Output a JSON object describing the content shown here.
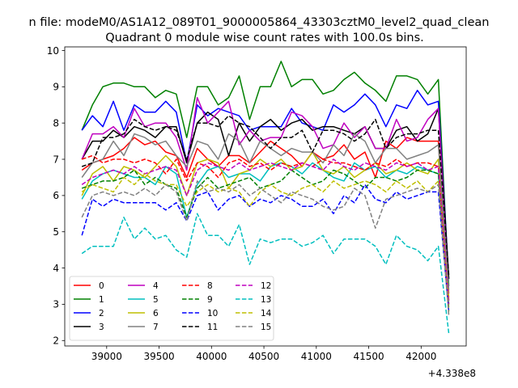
{
  "figure": {
    "suptitle": "n file: modeM0/AS1A12_089T01_9000005864_43303cztM0_level2_quad_clean",
    "title": "Quadrant 0 module wise count rates with 100.0s bins.",
    "offset_label": "+4.338e8"
  },
  "chart_data": {
    "type": "line",
    "title": "Quadrant 0 module wise count rates with 100.0s bins.",
    "xlabel": "",
    "ylabel": "",
    "x_offset_label": "+4.338e8",
    "xlim": [
      38600,
      42430
    ],
    "ylim": [
      1.85,
      10.1
    ],
    "xticks": [
      39000,
      39500,
      40000,
      40500,
      41000,
      41500,
      42000
    ],
    "yticks": [
      2,
      3,
      4,
      5,
      6,
      7,
      8,
      9,
      10
    ],
    "grid": false,
    "legend": {
      "placement": "lower-left",
      "columns": 4
    },
    "x": [
      38764,
      38864,
      38964,
      39064,
      39164,
      39264,
      39364,
      39464,
      39564,
      39664,
      39764,
      39864,
      39964,
      40064,
      40164,
      40264,
      40364,
      40464,
      40564,
      40664,
      40764,
      40864,
      40964,
      41064,
      41164,
      41264,
      41364,
      41464,
      41564,
      41664,
      41764,
      41864,
      41964,
      42064,
      42164,
      42264
    ],
    "series": [
      {
        "name": "0",
        "color": "#ff0000",
        "dash": "solid",
        "values": [
          6.7,
          6.9,
          7.0,
          7.1,
          7.3,
          7.6,
          7.4,
          7.5,
          7.2,
          7.1,
          6.5,
          7.3,
          7.0,
          6.8,
          7.1,
          7.1,
          6.9,
          7.2,
          7.5,
          7.3,
          7.1,
          6.8,
          7.2,
          7.0,
          7.1,
          7.4,
          7.0,
          7.2,
          6.5,
          7.5,
          7.3,
          7.6,
          7.5,
          7.5,
          7.5,
          3.1
        ]
      },
      {
        "name": "1",
        "color": "#008000",
        "dash": "solid",
        "values": [
          7.8,
          8.5,
          9.0,
          9.1,
          9.1,
          9.0,
          9.0,
          8.7,
          8.9,
          8.8,
          7.6,
          9.0,
          9.0,
          8.5,
          8.7,
          9.3,
          8.1,
          9.0,
          9.0,
          9.7,
          9.0,
          9.2,
          9.2,
          8.8,
          8.9,
          9.2,
          9.4,
          9.1,
          8.9,
          8.6,
          9.3,
          9.3,
          9.2,
          8.8,
          9.2,
          3.5
        ]
      },
      {
        "name": "2",
        "color": "#0000ff",
        "dash": "solid",
        "values": [
          7.8,
          8.2,
          7.9,
          8.6,
          7.8,
          8.5,
          8.3,
          8.3,
          8.6,
          8.3,
          6.9,
          8.5,
          8.2,
          8.4,
          8.3,
          8.2,
          7.8,
          7.9,
          7.9,
          7.9,
          8.4,
          8.0,
          7.9,
          7.8,
          8.5,
          8.3,
          8.5,
          8.8,
          8.5,
          7.9,
          8.5,
          8.4,
          8.9,
          8.5,
          8.6,
          3.7
        ]
      },
      {
        "name": "3",
        "color": "#000000",
        "dash": "solid",
        "values": [
          7.0,
          7.5,
          7.5,
          7.8,
          7.6,
          7.9,
          7.8,
          7.6,
          7.9,
          7.9,
          6.9,
          8.0,
          8.3,
          8.1,
          7.1,
          8.0,
          7.5,
          7.9,
          8.1,
          7.8,
          8.0,
          8.1,
          7.8,
          7.9,
          7.9,
          7.8,
          7.7,
          7.9,
          7.3,
          7.3,
          7.8,
          7.9,
          7.5,
          7.7,
          8.4,
          3.7
        ]
      },
      {
        "name": "4",
        "color": "#bf00bf",
        "dash": "solid",
        "values": [
          7.0,
          7.7,
          7.7,
          7.9,
          7.6,
          8.4,
          7.9,
          8.0,
          8.0,
          7.6,
          6.7,
          8.7,
          8.0,
          8.3,
          8.6,
          7.4,
          7.8,
          7.5,
          7.6,
          7.6,
          8.3,
          8.2,
          7.9,
          7.3,
          7.4,
          8.0,
          7.6,
          7.9,
          7.3,
          7.3,
          8.1,
          7.5,
          7.6,
          8.1,
          8.4,
          3.3
        ]
      },
      {
        "name": "5",
        "color": "#00bfbf",
        "dash": "solid",
        "values": [
          5.9,
          6.4,
          6.6,
          6.7,
          6.6,
          6.5,
          6.5,
          6.3,
          6.8,
          6.6,
          5.4,
          6.3,
          6.7,
          6.8,
          6.5,
          6.6,
          6.6,
          6.4,
          6.8,
          6.9,
          6.8,
          6.6,
          6.9,
          6.7,
          6.5,
          6.4,
          6.9,
          6.7,
          6.8,
          6.5,
          6.7,
          6.6,
          6.8,
          6.7,
          6.6,
          3.0
        ]
      },
      {
        "name": "6",
        "color": "#bfbf00",
        "dash": "solid",
        "values": [
          6.0,
          6.6,
          6.8,
          6.4,
          6.8,
          6.7,
          6.5,
          6.8,
          7.1,
          6.8,
          6.0,
          6.9,
          7.0,
          6.9,
          6.2,
          6.6,
          6.7,
          7.0,
          6.8,
          7.0,
          6.7,
          6.8,
          7.2,
          6.7,
          6.6,
          6.8,
          6.5,
          6.7,
          6.9,
          6.6,
          6.7,
          6.9,
          6.7,
          6.6,
          7.0,
          3.2
        ]
      },
      {
        "name": "7",
        "color": "#808080",
        "dash": "solid",
        "values": [
          6.5,
          6.9,
          7.0,
          7.5,
          7.1,
          7.7,
          7.6,
          7.4,
          7.5,
          7.1,
          6.8,
          7.5,
          7.4,
          7.0,
          7.7,
          7.5,
          6.9,
          7.5,
          7.3,
          7.1,
          7.3,
          7.2,
          7.2,
          6.9,
          7.4,
          7.1,
          7.7,
          7.5,
          6.9,
          7.3,
          7.3,
          7.0,
          7.1,
          7.2,
          7.4,
          3.4
        ]
      },
      {
        "name": "8",
        "color": "#ff0000",
        "dash": "dashed",
        "values": [
          7.0,
          7.1,
          6.9,
          7.0,
          7.0,
          6.9,
          7.0,
          6.9,
          6.6,
          7.0,
          6.4,
          6.9,
          6.8,
          6.5,
          6.9,
          7.0,
          6.8,
          6.9,
          6.7,
          6.9,
          6.8,
          6.9,
          6.8,
          7.0,
          6.9,
          6.9,
          6.8,
          6.7,
          6.9,
          6.8,
          7.0,
          6.8,
          6.9,
          6.9,
          6.8,
          2.9
        ]
      },
      {
        "name": "9",
        "color": "#008000",
        "dash": "dashed",
        "values": [
          6.2,
          6.3,
          6.4,
          6.4,
          6.5,
          6.7,
          6.3,
          6.5,
          6.3,
          6.2,
          5.4,
          6.2,
          6.5,
          6.2,
          6.3,
          6.4,
          6.5,
          6.2,
          6.3,
          6.4,
          6.7,
          6.5,
          6.3,
          6.4,
          6.7,
          6.6,
          6.4,
          6.2,
          6.5,
          6.5,
          6.4,
          6.5,
          6.7,
          6.7,
          6.6,
          2.9
        ]
      },
      {
        "name": "10",
        "color": "#0000ff",
        "dash": "dashed",
        "values": [
          4.9,
          5.9,
          5.7,
          5.9,
          5.8,
          5.8,
          5.8,
          5.8,
          5.6,
          5.8,
          5.3,
          6.0,
          6.1,
          5.6,
          5.9,
          6.0,
          5.7,
          5.9,
          5.8,
          6.0,
          5.9,
          5.7,
          5.7,
          5.9,
          5.5,
          6.0,
          5.8,
          6.3,
          5.9,
          5.8,
          6.1,
          5.9,
          6.0,
          6.1,
          6.1,
          2.8
        ]
      },
      {
        "name": "11",
        "color": "#000000",
        "dash": "dashed",
        "values": [
          6.8,
          6.9,
          7.6,
          7.6,
          7.7,
          8.1,
          7.9,
          7.8,
          7.9,
          7.8,
          7.0,
          8.0,
          8.0,
          7.9,
          8.2,
          8.0,
          7.9,
          7.6,
          7.3,
          7.6,
          7.6,
          7.8,
          7.2,
          7.8,
          7.8,
          7.7,
          7.5,
          7.7,
          8.1,
          7.3,
          7.6,
          7.7,
          7.7,
          7.8,
          7.8,
          3.8
        ]
      },
      {
        "name": "12",
        "color": "#bf00bf",
        "dash": "dashed",
        "values": [
          6.3,
          6.5,
          6.6,
          6.7,
          6.6,
          6.8,
          6.6,
          6.7,
          6.8,
          6.7,
          6.0,
          6.7,
          6.9,
          6.8,
          6.7,
          6.9,
          6.7,
          6.8,
          6.9,
          6.8,
          6.7,
          6.9,
          6.8,
          6.7,
          7.0,
          6.8,
          6.7,
          6.9,
          6.8,
          6.7,
          6.9,
          6.8,
          6.9,
          6.7,
          6.8,
          3.0
        ]
      },
      {
        "name": "13",
        "color": "#00bfbf",
        "dash": "dashed",
        "values": [
          4.4,
          4.6,
          4.6,
          4.6,
          5.4,
          4.8,
          5.1,
          4.8,
          4.9,
          4.5,
          4.3,
          5.5,
          4.9,
          4.9,
          4.6,
          5.2,
          4.1,
          4.8,
          4.7,
          4.8,
          4.8,
          4.6,
          4.7,
          4.9,
          4.4,
          4.8,
          4.8,
          4.8,
          4.6,
          4.1,
          4.9,
          4.6,
          4.5,
          4.2,
          4.6,
          2.2
        ]
      },
      {
        "name": "14",
        "color": "#bfbf00",
        "dash": "dashed",
        "values": [
          6.1,
          6.3,
          6.2,
          6.1,
          6.5,
          6.3,
          6.6,
          6.4,
          6.3,
          6.3,
          5.7,
          6.1,
          6.3,
          6.1,
          6.2,
          6.1,
          5.7,
          6.1,
          6.3,
          6.1,
          6.0,
          6.2,
          6.3,
          6.1,
          6.4,
          6.2,
          6.3,
          6.4,
          6.3,
          6.1,
          6.4,
          6.2,
          6.4,
          6.1,
          6.4,
          2.8
        ]
      },
      {
        "name": "15",
        "color": "#808080",
        "dash": "dashed",
        "values": [
          5.4,
          6.0,
          6.1,
          6.0,
          6.1,
          6.0,
          6.2,
          6.0,
          6.3,
          6.1,
          5.3,
          6.4,
          6.1,
          6.2,
          6.1,
          6.3,
          6.0,
          6.2,
          6.0,
          5.8,
          6.1,
          6.0,
          5.9,
          5.7,
          5.6,
          5.7,
          6.2,
          6.0,
          5.1,
          5.9,
          6.0,
          6.1,
          6.2,
          6.1,
          6.3,
          2.7
        ]
      }
    ]
  }
}
